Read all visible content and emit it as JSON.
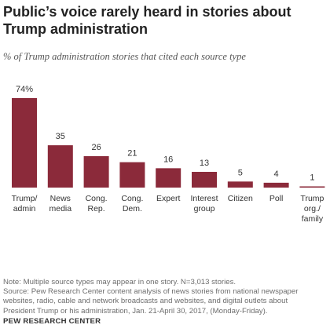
{
  "header": {
    "title": "Public’s voice rarely heard in stories about Trump administration",
    "subtitle": "% of Trump administration stories that cited each source type"
  },
  "chart_data": {
    "type": "bar",
    "title": "Public’s voice rarely heard in stories about Trump administration",
    "subtitle": "% of Trump administration stories that cited each source type",
    "xlabel": "",
    "ylabel": "",
    "ylim": [
      0,
      74
    ],
    "bar_color": "#8b2a3a",
    "categories": [
      [
        "Trump/",
        "admin"
      ],
      [
        "News",
        "media"
      ],
      [
        "Cong.",
        "Rep."
      ],
      [
        "Cong.",
        "Dem."
      ],
      [
        "Expert"
      ],
      [
        "Interest",
        "group"
      ],
      [
        "Citizen"
      ],
      [
        "Poll"
      ],
      [
        "Trump",
        "org./",
        "family"
      ]
    ],
    "values": [
      74,
      35,
      26,
      21,
      16,
      13,
      5,
      4,
      1
    ],
    "value_labels": [
      "74%",
      "35",
      "26",
      "21",
      "16",
      "13",
      "5",
      "4",
      "1"
    ]
  },
  "footer": {
    "note_lines": [
      "Note: Multiple source types may appear in one story. N=3,013 stories.",
      "Source: Pew Research Center content analysis of news stories from national newspaper",
      "websites, radio, cable and network broadcasts and websites, and digital outlets about",
      "President Trump or his administration, Jan. 21-April 30, 2017, (Monday-Friday)."
    ],
    "brand": "PEW RESEARCH CENTER"
  }
}
